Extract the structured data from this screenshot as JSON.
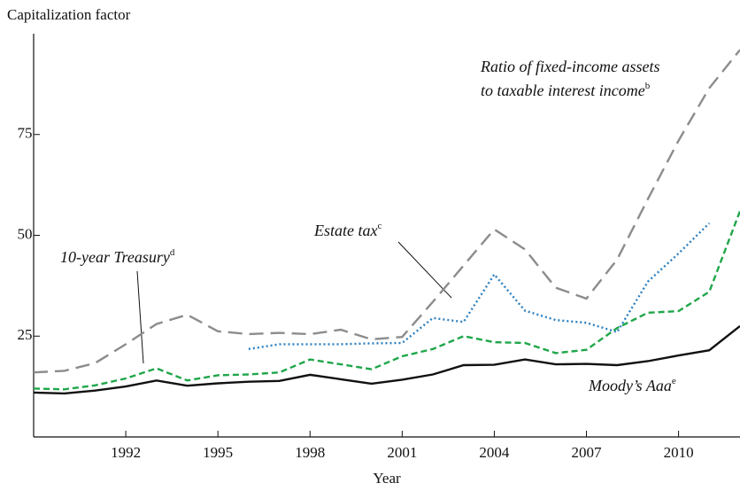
{
  "chart_data": {
    "type": "line",
    "ylabel": "Capitalization factor",
    "xlabel": "Year",
    "x": [
      1989,
      1990,
      1991,
      1992,
      1993,
      1994,
      1995,
      1996,
      1997,
      1998,
      1999,
      2000,
      2001,
      2002,
      2003,
      2004,
      2005,
      2006,
      2007,
      2008,
      2009,
      2010,
      2011,
      2012
    ],
    "xlim": [
      1989,
      2012
    ],
    "xticks": [
      1992,
      1995,
      1998,
      2001,
      2004,
      2007,
      2010
    ],
    "ylim": [
      0,
      100
    ],
    "yticks": [
      25,
      50,
      75
    ],
    "grid": false,
    "series": [
      {
        "name": "Ratio of fixed-income assets to taxable interest income",
        "color": "#8c8c8c",
        "dash": "16 8",
        "values": [
          16,
          16.4,
          18.3,
          23,
          28,
          30.3,
          26.2,
          25.5,
          25.8,
          25.5,
          26.6,
          24.2,
          24.8,
          33.5,
          42.5,
          51.5,
          46.5,
          37,
          34.3,
          44,
          59,
          73.5,
          86.5,
          96
        ]
      },
      {
        "name": "Estate tax",
        "color": "#2a7fc0",
        "dash": "2 3",
        "values": [
          null,
          null,
          null,
          null,
          null,
          null,
          null,
          21.8,
          23,
          23,
          23,
          23.2,
          23.3,
          29.5,
          28.5,
          40.3,
          31.3,
          29,
          28.3,
          26,
          38.5,
          45.5,
          53,
          null
        ]
      },
      {
        "name": "10-year Treasury",
        "color": "#1fa64a",
        "dash": "7 4",
        "values": [
          12,
          11.8,
          12.8,
          14.5,
          17,
          14,
          15.3,
          15.5,
          16,
          19.2,
          18,
          16.8,
          20,
          21.8,
          25,
          23.5,
          23.3,
          20.8,
          21.6,
          27,
          30.8,
          31.2,
          36,
          56
        ]
      },
      {
        "name": "Moody's Aaa",
        "color": "#111111",
        "dash": "",
        "values": [
          11,
          10.8,
          11.5,
          12.5,
          14,
          12.7,
          13.3,
          13.7,
          13.9,
          15.4,
          14.3,
          13.2,
          14.2,
          15.5,
          17.8,
          17.9,
          19.2,
          18,
          18.1,
          17.8,
          18.8,
          20.2,
          21.5,
          27.5
        ]
      }
    ],
    "annotations": [
      {
        "lines": [
          "Ratio of fixed-income assets",
          "to taxable interest income"
        ],
        "sup": "b"
      },
      {
        "lines": [
          "Estate tax"
        ],
        "sup": "c"
      },
      {
        "lines": [
          "10-year Treasury"
        ],
        "sup": "d"
      },
      {
        "lines": [
          "Moody’s Aaa"
        ],
        "sup": "e"
      }
    ]
  }
}
